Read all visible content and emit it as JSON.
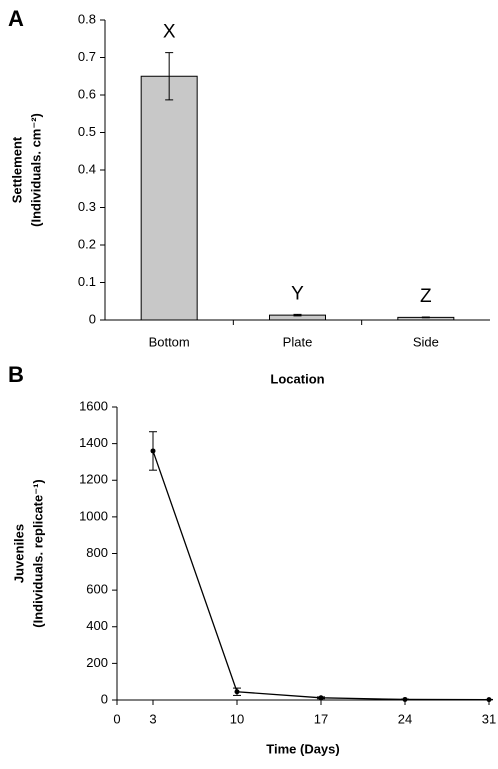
{
  "chart_data": [
    {
      "type": "bar",
      "panel_label": "A",
      "ylabel": [
        "Settlement",
        "(Individuals. cm⁻²)"
      ],
      "xlabel": "Location",
      "categories": [
        "Bottom",
        "Plate",
        "Side"
      ],
      "values": [
        0.65,
        0.013,
        0.007
      ],
      "errors": [
        0.063,
        0.002,
        0.001
      ],
      "annotations": [
        "X",
        "Y",
        "Z"
      ],
      "color": "#c8c8c8",
      "ylim": [
        0,
        0.8
      ],
      "yticks": [
        0,
        0.1,
        0.2,
        0.3,
        0.4,
        0.5,
        0.6,
        0.7,
        0.8
      ]
    },
    {
      "type": "line",
      "panel_label": "B",
      "ylabel": [
        "Juveniles",
        "(Individuals. replicate⁻¹)"
      ],
      "xlabel": "Time (Days)",
      "x": [
        3,
        10,
        17,
        24,
        31
      ],
      "values": [
        1360,
        45,
        12,
        3,
        2
      ],
      "errors": [
        105,
        20,
        5,
        2,
        1
      ],
      "color": "#000000",
      "xlim": [
        0,
        31
      ],
      "xticks": [
        0,
        3,
        10,
        17,
        24,
        31
      ],
      "ylim": [
        0,
        1600
      ],
      "yticks": [
        0,
        200,
        400,
        600,
        800,
        1000,
        1200,
        1400,
        1600
      ]
    }
  ]
}
